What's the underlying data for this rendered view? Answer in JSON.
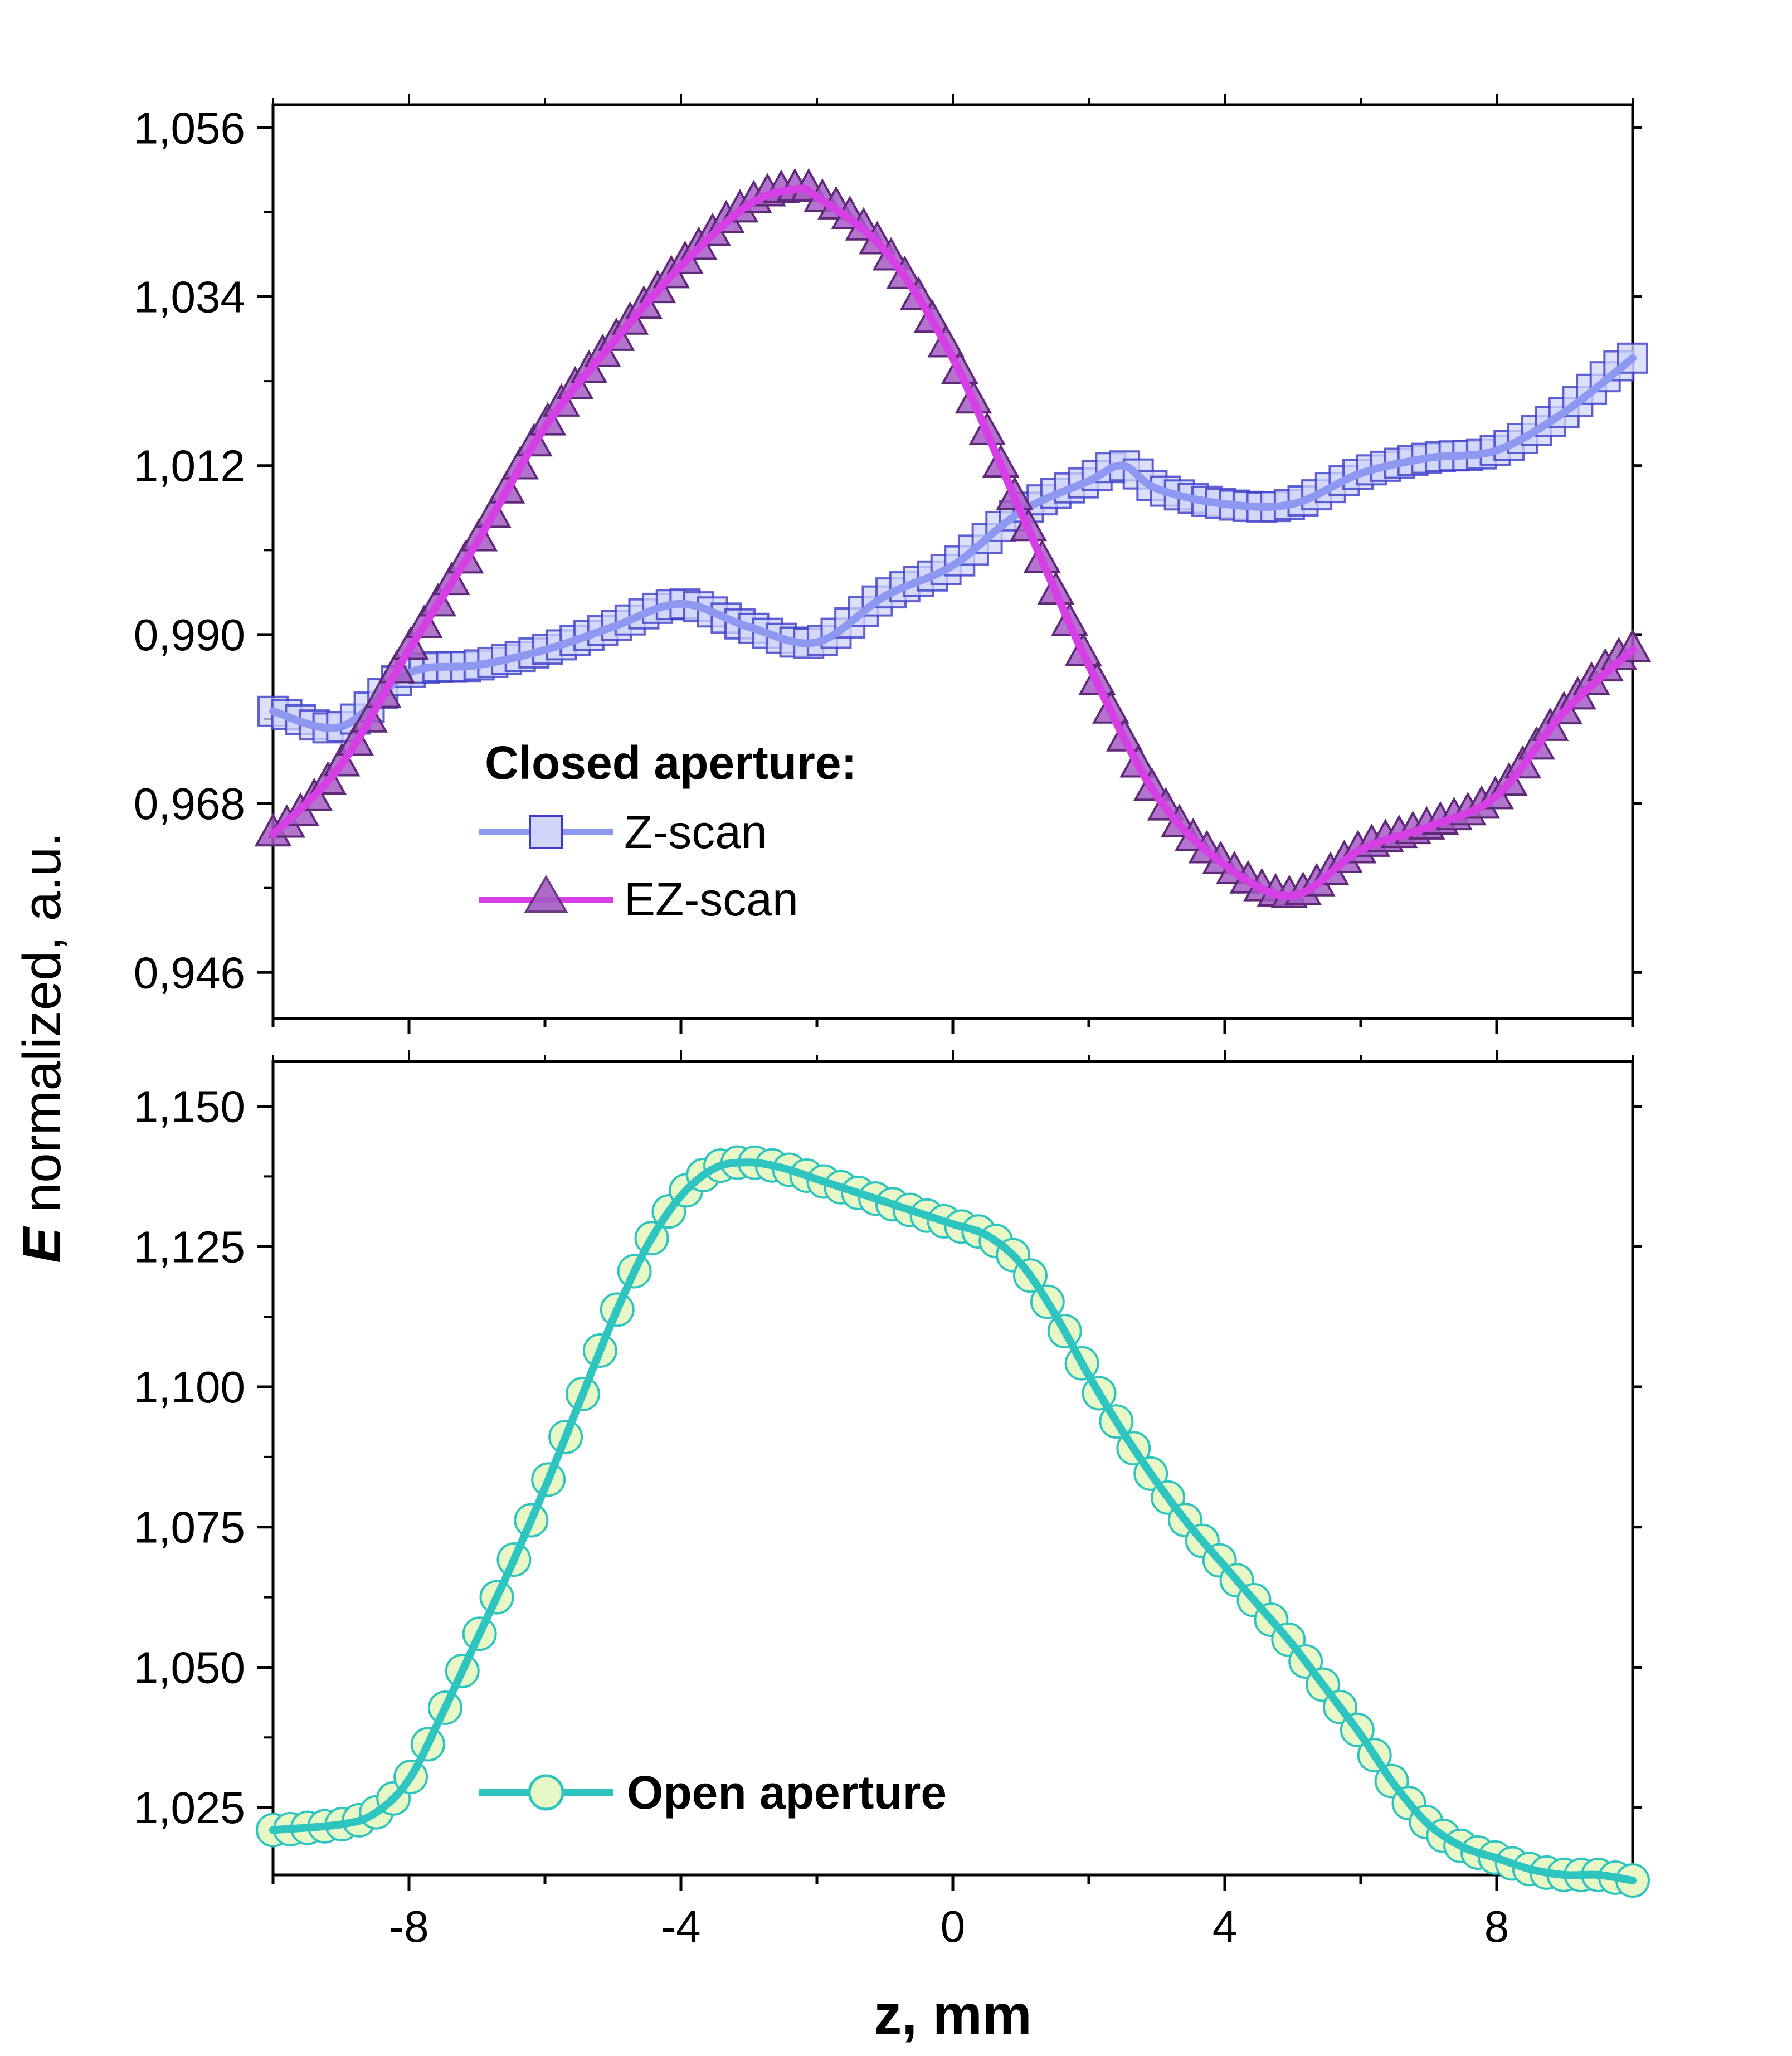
{
  "chart_data": [
    {
      "type": "line",
      "panel": "top",
      "ylim": [
        0.94,
        1.059
      ],
      "xlim": [
        -10,
        10
      ],
      "xticks": [
        -8,
        -4,
        0,
        4,
        8
      ],
      "yticks": [
        0.946,
        0.968,
        0.99,
        1.012,
        1.034,
        1.056
      ],
      "ytick_labels": [
        "0,946",
        "0,968",
        "0,990",
        "1,012",
        "1,034",
        "1,056"
      ],
      "legend_title": "Closed aperture:",
      "series": [
        {
          "name": "Z-scan",
          "marker": "square",
          "color": "#8f98f0",
          "marker_edge": "#3c3cc8",
          "marker_fill": "#d0d6fa",
          "x": [
            -10,
            -9,
            -8,
            -7,
            -6,
            -5,
            -4,
            -3,
            -2,
            -1,
            0,
            1,
            2,
            2.5,
            3,
            4,
            5,
            6,
            7,
            8,
            9,
            10
          ],
          "y": [
            0.98,
            0.978,
            0.985,
            0.986,
            0.988,
            0.991,
            0.994,
            0.991,
            0.989,
            0.995,
            0.999,
            1.006,
            1.01,
            1.012,
            1.009,
            1.007,
            1.007,
            1.011,
            1.013,
            1.014,
            1.019,
            1.026
          ]
        },
        {
          "name": "EZ-scan",
          "marker": "triangle",
          "color": "#d63ee6",
          "marker_edge": "#5e2a78",
          "marker_fill": "#a45cc4",
          "x": [
            -10,
            -9,
            -8,
            -7,
            -6,
            -5,
            -4,
            -3,
            -2.3,
            -2,
            -1,
            0,
            1,
            2,
            3,
            4,
            5,
            6,
            7,
            8,
            9,
            10
          ],
          "y": [
            0.964,
            0.973,
            0.988,
            1.002,
            1.017,
            1.028,
            1.038,
            1.046,
            1.048,
            1.047,
            1.04,
            1.026,
            1.006,
            0.986,
            0.969,
            0.96,
            0.956,
            0.962,
            0.965,
            0.969,
            0.98,
            0.988
          ]
        }
      ]
    },
    {
      "type": "line",
      "panel": "bottom",
      "ylim": [
        1.013,
        1.158
      ],
      "xlim": [
        -10,
        10
      ],
      "xticks": [
        -8,
        -4,
        0,
        4,
        8
      ],
      "xtick_labels": [
        "-8",
        "-4",
        "0",
        "4",
        "8"
      ],
      "yticks": [
        1.025,
        1.05,
        1.075,
        1.1,
        1.125,
        1.15
      ],
      "ytick_labels": [
        "1,025",
        "1,050",
        "1,075",
        "1,100",
        "1,125",
        "1,150"
      ],
      "series": [
        {
          "name": "Open aperture",
          "marker": "circle",
          "color": "#2ec4c0",
          "marker_edge": "#2ec4c0",
          "marker_fill": "#e8f7c6",
          "x": [
            -10,
            -9,
            -8.5,
            -8,
            -7.5,
            -7,
            -6.5,
            -6,
            -5.5,
            -5,
            -4.5,
            -4,
            -3.5,
            -3,
            -2.5,
            -2,
            -1.5,
            -1,
            -0.5,
            0,
            0.5,
            1,
            1.5,
            2,
            2.5,
            3,
            3.5,
            4,
            4.5,
            5,
            5.5,
            6,
            6.5,
            7,
            7.5,
            8,
            8.5,
            9,
            9.5,
            10
          ],
          "y": [
            1.021,
            1.022,
            1.024,
            1.03,
            1.042,
            1.055,
            1.068,
            1.082,
            1.097,
            1.112,
            1.125,
            1.134,
            1.139,
            1.14,
            1.139,
            1.137,
            1.135,
            1.133,
            1.131,
            1.129,
            1.127,
            1.122,
            1.113,
            1.102,
            1.092,
            1.083,
            1.075,
            1.068,
            1.061,
            1.054,
            1.046,
            1.038,
            1.029,
            1.022,
            1.018,
            1.016,
            1.014,
            1.013,
            1.013,
            1.012
          ]
        }
      ]
    }
  ],
  "axes": {
    "ylabel_bold": "E",
    "ylabel_rest": " normalized, a.u.",
    "xlabel": "z, mm"
  }
}
